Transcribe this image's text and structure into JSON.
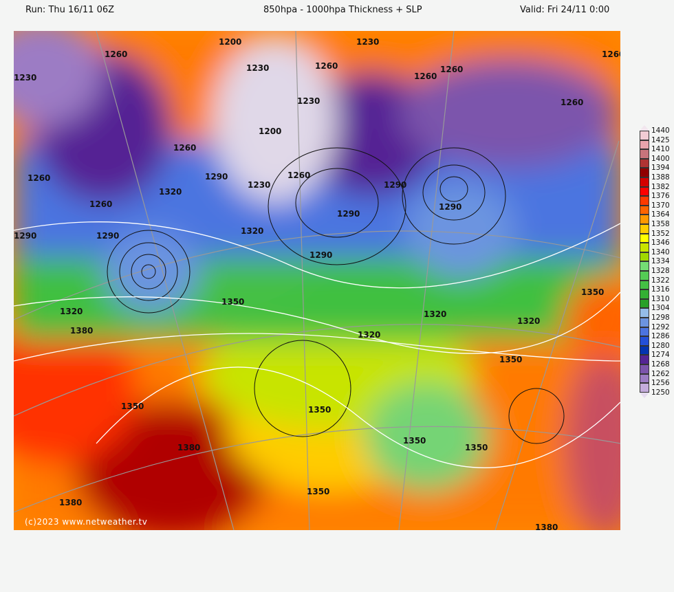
{
  "header": {
    "run": "Run: Thu 16/11 06Z",
    "title": "850hpa - 1000hpa Thickness + SLP",
    "valid": "Valid: Fri 24/11 0:00"
  },
  "map": {
    "copyright": "(c)2023 www.netweather.tv",
    "contour_labels": [
      "1200",
      "1230",
      "1260",
      "1230",
      "1260",
      "1260",
      "1260",
      "1230",
      "1260",
      "1260",
      "1230",
      "1200",
      "1230",
      "1260",
      "1260",
      "1260",
      "1290",
      "1260",
      "1290",
      "1320",
      "1290",
      "1290",
      "1290",
      "1320",
      "1290",
      "1290",
      "1320",
      "1350",
      "1320",
      "1350",
      "1380",
      "1350",
      "1320",
      "1320",
      "1320",
      "1350",
      "1350",
      "1350",
      "1350",
      "1380",
      "1350",
      "1350",
      "1380",
      "1380",
      "1350"
    ]
  },
  "legend": {
    "labels": [
      "1440",
      "1425",
      "1410",
      "1400",
      "1394",
      "1388",
      "1382",
      "1376",
      "1370",
      "1364",
      "1358",
      "1352",
      "1346",
      "1340",
      "1334",
      "1328",
      "1322",
      "1316",
      "1310",
      "1304",
      "1298",
      "1292",
      "1286",
      "1280",
      "1274",
      "1268",
      "1262",
      "1256",
      "1250"
    ],
    "colors": [
      "#f2ccd4",
      "#e8a4ac",
      "#c8747c",
      "#b03434",
      "#900000",
      "#d40000",
      "#ff0000",
      "#ff3a00",
      "#ff6400",
      "#ff9800",
      "#ffcc00",
      "#ffff00",
      "#c8e400",
      "#a0d800",
      "#74dc74",
      "#54cc54",
      "#44c044",
      "#34b034",
      "#28a028",
      "#94bce8",
      "#6c94e0",
      "#4c74e0",
      "#2450d8",
      "#0434b0",
      "#542494",
      "#7c54ac",
      "#9c7cc4",
      "#c4acdc"
    ]
  }
}
